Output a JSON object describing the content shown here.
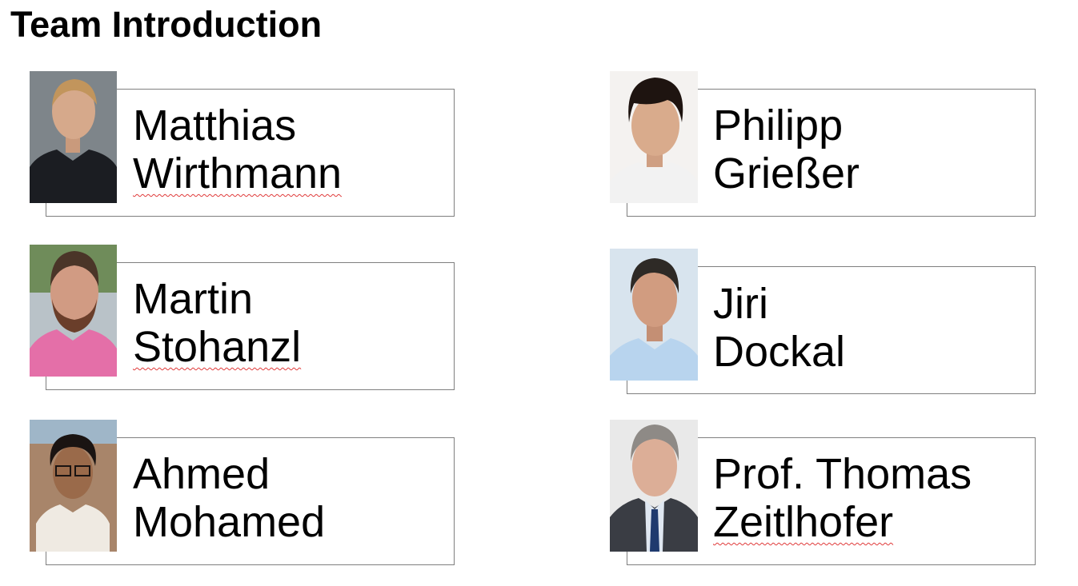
{
  "title": "Team Introduction",
  "members": [
    {
      "first": "Matthias",
      "last": "Wirthmann",
      "photo_desc": "portrait-photo",
      "colors": {
        "bg": "#7e858a",
        "skin": "#d6a98b",
        "hair": "#c2955c",
        "shirt": "#1b1d22"
      }
    },
    {
      "first": "Martin",
      "last": "Stohanzl",
      "photo_desc": "portrait-photo",
      "colors": {
        "bg": "#6f8c5a",
        "skin": "#d19b83",
        "hair": "#4a3528",
        "shirt": "#e46fa8"
      }
    },
    {
      "first": "Ahmed",
      "last": "Mohamed",
      "photo_desc": "portrait-photo",
      "colors": {
        "bg": "#a8856a",
        "skin": "#9a6a4a",
        "hair": "#1a1412",
        "shirt": "#efeae2"
      }
    },
    {
      "first": "Philipp",
      "last": "Grießer",
      "photo_desc": "portrait-photo",
      "colors": {
        "bg": "#f4f2f0",
        "skin": "#d9ab8c",
        "hair": "#1e1410",
        "shirt": "#f2f2f2"
      }
    },
    {
      "first": "Jiri",
      "last": "Dockal",
      "photo_desc": "portrait-photo",
      "colors": {
        "bg": "#d8e4ee",
        "skin": "#d19c80",
        "hair": "#2e2a26",
        "shirt": "#b8d4ee"
      }
    },
    {
      "first": "Prof. Thomas",
      "last": "Zeitlhofer",
      "photo_desc": "portrait-photo",
      "colors": {
        "bg": "#e9e9e9",
        "skin": "#dcae97",
        "hair": "#8e8a86",
        "shirt": "#3a3d44"
      }
    }
  ]
}
